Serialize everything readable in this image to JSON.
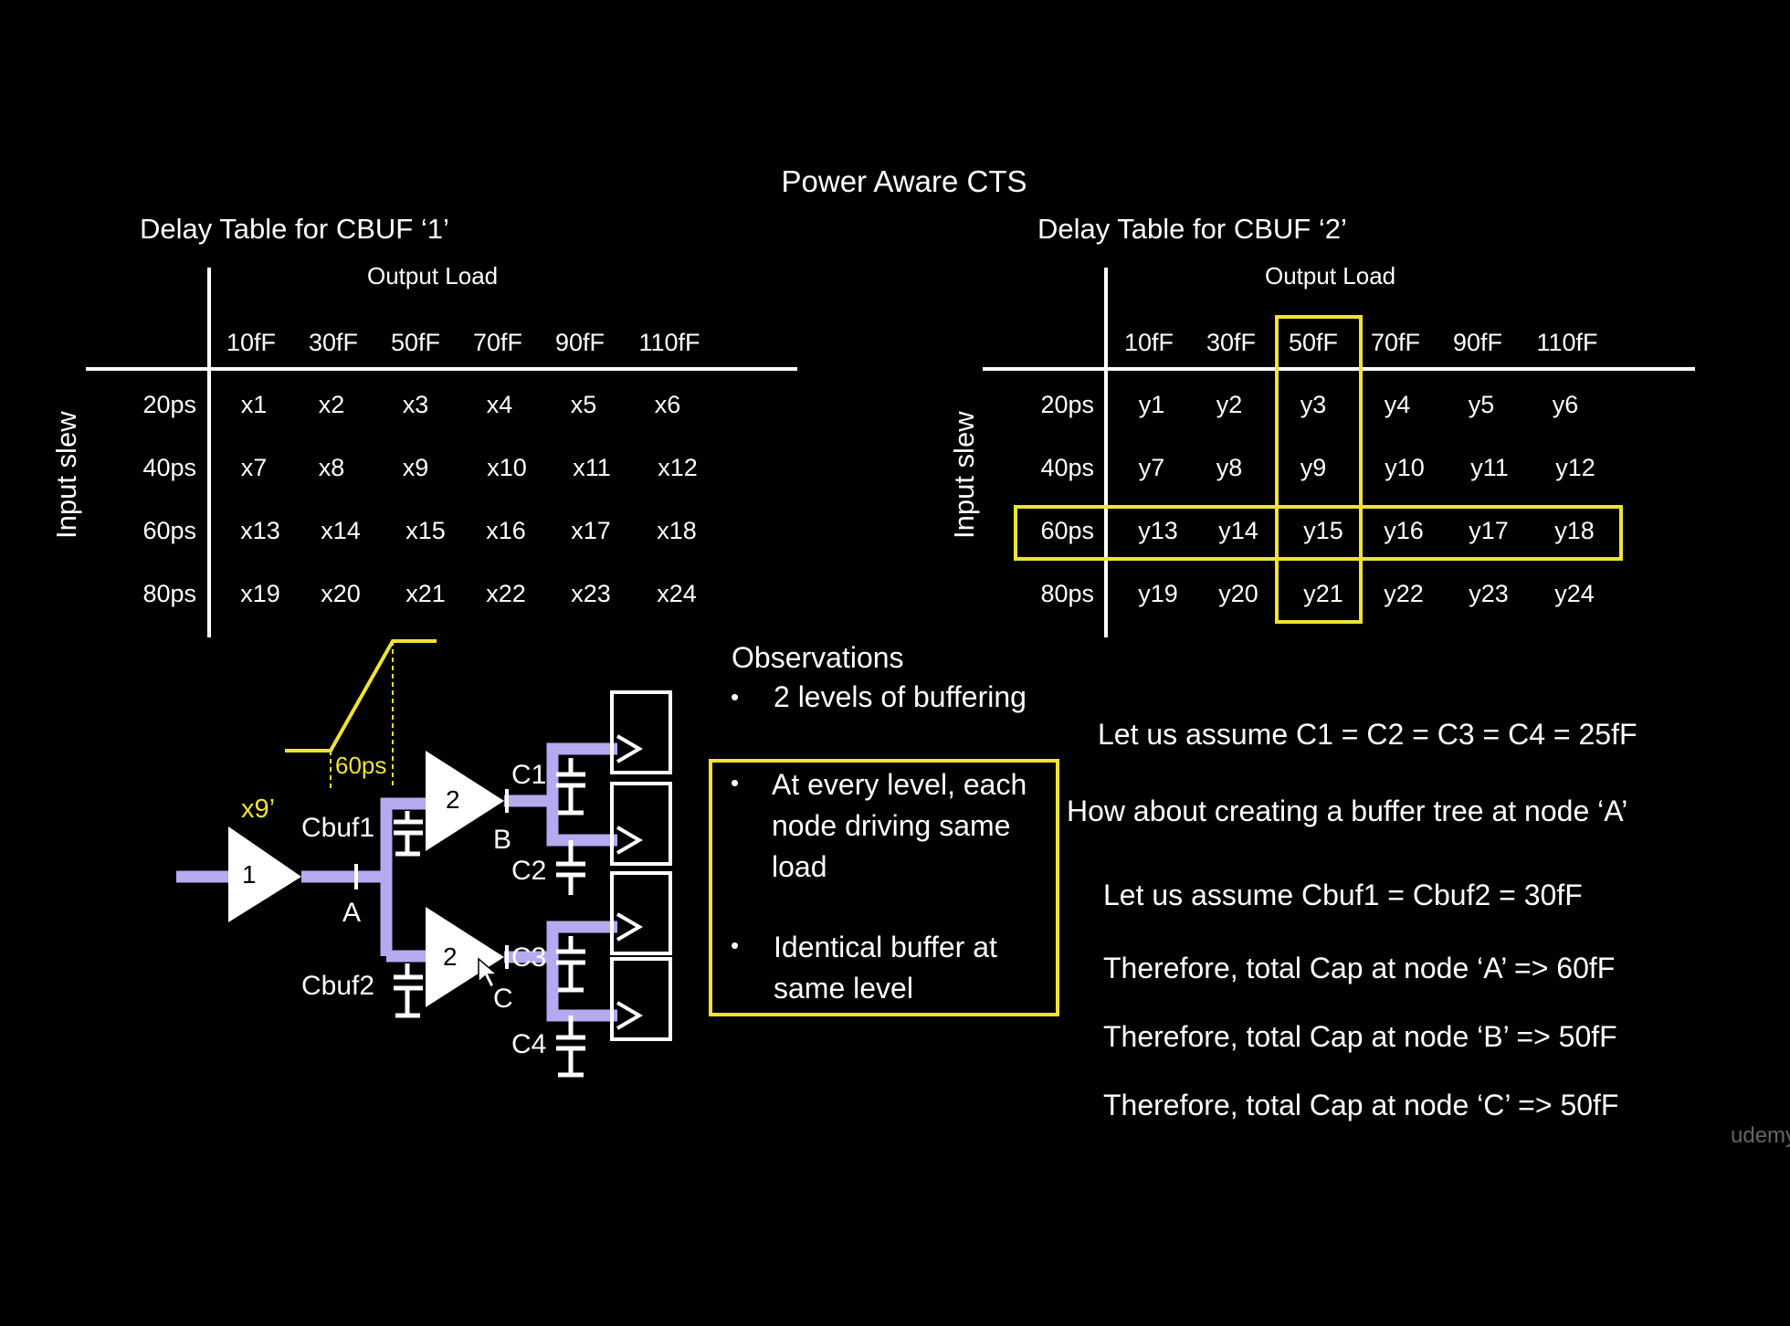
{
  "title": "Power Aware CTS",
  "table1": {
    "caption": "Delay Table for CBUF ‘1’",
    "output_load_label": "Output Load",
    "input_slew_label": "Input slew",
    "columns": [
      "10fF",
      "30fF",
      "50fF",
      "70fF",
      "90fF",
      "110fF"
    ],
    "rows": [
      {
        "slew": "20ps",
        "cells": [
          "x1",
          "x2",
          "x3",
          "x4",
          "x5",
          "x6"
        ]
      },
      {
        "slew": "40ps",
        "cells": [
          "x7",
          "x8",
          "x9",
          "x10",
          "x11",
          "x12"
        ]
      },
      {
        "slew": "60ps",
        "cells": [
          "x13",
          "x14",
          "x15",
          "x16",
          "x17",
          "x18"
        ]
      },
      {
        "slew": "80ps",
        "cells": [
          "x19",
          "x20",
          "x21",
          "x22",
          "x23",
          "x24"
        ]
      }
    ]
  },
  "table2": {
    "caption": "Delay Table for CBUF ‘2’",
    "output_load_label": "Output Load",
    "input_slew_label": "Input slew",
    "columns": [
      "10fF",
      "30fF",
      "50fF",
      "70fF",
      "90fF",
      "110fF"
    ],
    "rows": [
      {
        "slew": "20ps",
        "cells": [
          "y1",
          "y2",
          "y3",
          "y4",
          "y5",
          "y6"
        ]
      },
      {
        "slew": "40ps",
        "cells": [
          "y7",
          "y8",
          "y9",
          "y10",
          "y11",
          "y12"
        ]
      },
      {
        "slew": "60ps",
        "cells": [
          "y13",
          "y14",
          "y15",
          "y16",
          "y17",
          "y18"
        ]
      },
      {
        "slew": "80ps",
        "cells": [
          "y19",
          "y20",
          "y21",
          "y22",
          "y23",
          "y24"
        ]
      }
    ],
    "highlight_column": "50fF",
    "highlight_row": "60ps"
  },
  "observations": {
    "heading": "Observations",
    "items": [
      "2 levels of buffering",
      "At every level, each node driving same load",
      "Identical buffer at same level"
    ]
  },
  "notes": [
    "Let us assume C1 = C2 = C3 = C4 = 25fF",
    "How about creating a buffer tree at node ‘A’",
    "Let us assume Cbuf1 = Cbuf2 = 30fF",
    "Therefore, total Cap at node ‘A’  => 60fF",
    "Therefore, total Cap at node ‘B’  => 50fF",
    "Therefore, total Cap at node ‘C’  => 50fF"
  ],
  "circuit": {
    "buf1_label": "1",
    "buf2_label": "2",
    "slew_label": "60ps",
    "delay_label": "x9’",
    "nodes": [
      "A",
      "B",
      "C"
    ],
    "caps": [
      "C1",
      "C2",
      "C3",
      "C4"
    ],
    "cbuf1": "Cbuf1",
    "cbuf2": "Cbuf2"
  },
  "watermark": "udemy",
  "colors": {
    "background": "#000000",
    "highlight": "#f0e236",
    "wire": "#b3aaf0",
    "text": "#ffffff"
  }
}
